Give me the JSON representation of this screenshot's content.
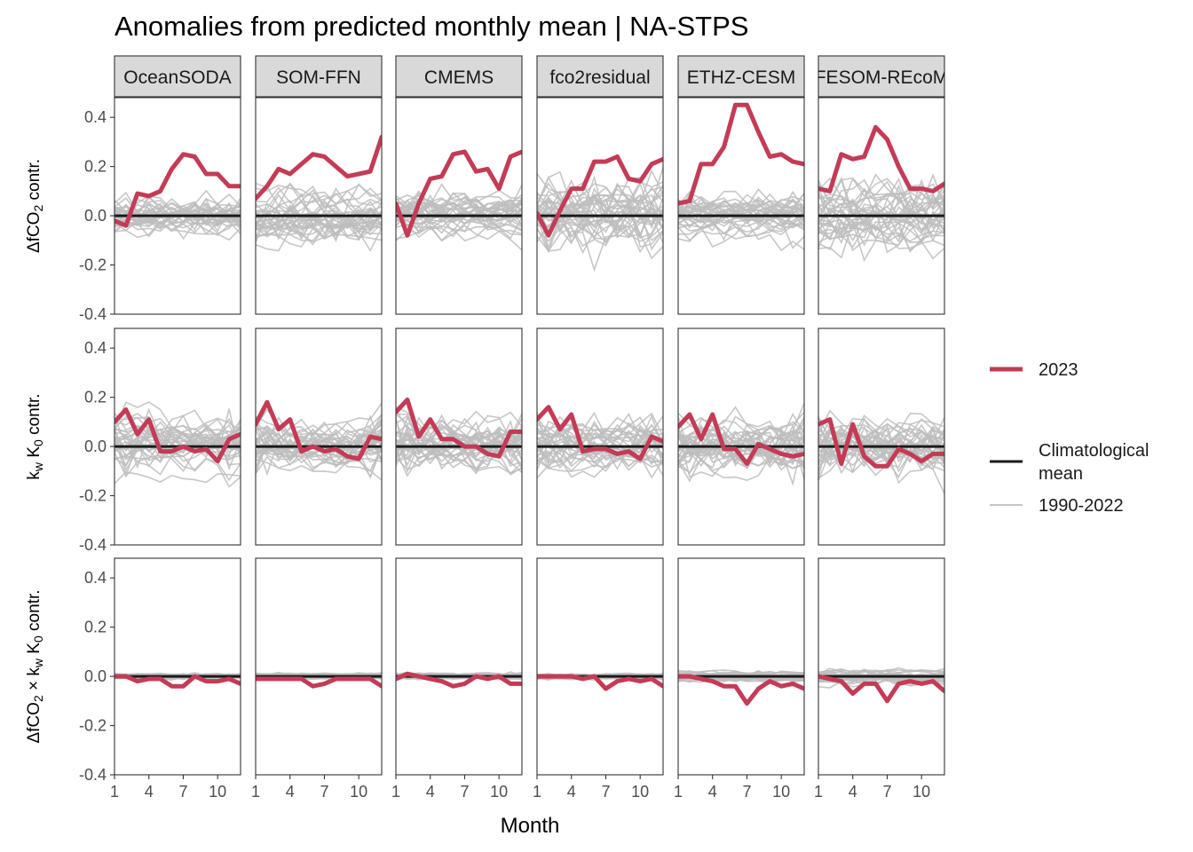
{
  "chart_data": {
    "type": "line",
    "title": "Anomalies from predicted monthly mean | NA-STPS",
    "xlabel": "Month",
    "x": [
      1,
      2,
      3,
      4,
      5,
      6,
      7,
      8,
      9,
      10,
      11,
      12
    ],
    "x_ticks": [
      1,
      4,
      7,
      10
    ],
    "xlim": [
      1,
      12
    ],
    "ylim": [
      -0.4,
      0.48
    ],
    "y_ticks": [
      -0.4,
      -0.2,
      0.0,
      0.2,
      0.4
    ],
    "y_tick_labels": [
      "-0.4",
      "-0.2",
      "0.0",
      "0.2",
      "0.4"
    ],
    "panels_columns": [
      "OceanSODA",
      "SOM-FFN",
      "CMEMS",
      "fco2residual",
      "ETHZ-CESM",
      "FESOM-REcoM"
    ],
    "panels_rows": [
      {
        "key": "dfco2",
        "label_parts": [
          "ΔfCO",
          "2",
          " contr."
        ]
      },
      {
        "key": "kw",
        "label_parts": [
          "k",
          "w",
          " K",
          "0",
          " contr."
        ]
      },
      {
        "key": "cross",
        "label_parts": [
          "ΔfCO",
          "2",
          " × k",
          "w",
          " K",
          "0",
          " contr."
        ]
      }
    ],
    "legend": [
      {
        "label": "2023",
        "color": "#c43b56",
        "style": "thick"
      },
      {
        "label": "Climatological mean",
        "label_lines": [
          "Climatological",
          "mean"
        ],
        "color": "#1a1a1a",
        "style": "medium"
      },
      {
        "label": "1990-2022",
        "color": "#bdbdbd",
        "style": "thin"
      }
    ],
    "legend_position": "right",
    "climatological_mean": 0.0,
    "background_years": {
      "count": 33,
      "range": "1990-2022",
      "spread": {
        "dfco2": [
          0.06,
          0.07,
          0.06,
          0.11,
          0.06,
          0.1
        ],
        "kw": [
          0.08,
          0.07,
          0.08,
          0.07,
          0.08,
          0.09
        ],
        "cross": [
          0.008,
          0.008,
          0.008,
          0.008,
          0.015,
          0.02
        ]
      }
    },
    "series_2023": {
      "dfco2": [
        [
          -0.02,
          -0.04,
          0.09,
          0.08,
          0.1,
          0.19,
          0.25,
          0.24,
          0.17,
          0.17,
          0.12,
          0.12
        ],
        [
          0.07,
          0.12,
          0.19,
          0.17,
          0.21,
          0.25,
          0.24,
          0.2,
          0.16,
          0.17,
          0.18,
          0.32
        ],
        [
          0.05,
          -0.08,
          0.05,
          0.15,
          0.16,
          0.25,
          0.26,
          0.18,
          0.19,
          0.11,
          0.24,
          0.26
        ],
        [
          0.01,
          -0.08,
          0.02,
          0.11,
          0.11,
          0.22,
          0.22,
          0.24,
          0.15,
          0.14,
          0.21,
          0.23
        ],
        [
          0.05,
          0.06,
          0.21,
          0.21,
          0.28,
          0.45,
          0.45,
          0.34,
          0.24,
          0.25,
          0.22,
          0.21
        ],
        [
          0.11,
          0.1,
          0.25,
          0.23,
          0.24,
          0.36,
          0.31,
          0.2,
          0.11,
          0.11,
          0.1,
          0.13
        ]
      ],
      "kw": [
        [
          0.1,
          0.15,
          0.05,
          0.11,
          -0.02,
          -0.02,
          0.0,
          -0.02,
          -0.01,
          -0.06,
          0.03,
          0.05
        ],
        [
          0.09,
          0.18,
          0.07,
          0.11,
          -0.02,
          0.0,
          -0.02,
          -0.01,
          -0.04,
          -0.05,
          0.04,
          0.03
        ],
        [
          0.14,
          0.19,
          0.04,
          0.11,
          0.03,
          0.03,
          0.0,
          0.0,
          -0.03,
          -0.04,
          0.06,
          0.06
        ],
        [
          0.11,
          0.16,
          0.07,
          0.13,
          -0.02,
          -0.01,
          -0.01,
          -0.03,
          -0.02,
          -0.05,
          0.04,
          0.02
        ],
        [
          0.08,
          0.13,
          0.03,
          0.13,
          -0.01,
          -0.01,
          -0.07,
          0.01,
          -0.01,
          -0.03,
          -0.04,
          -0.03
        ],
        [
          0.09,
          0.11,
          -0.07,
          0.09,
          -0.04,
          -0.08,
          -0.08,
          -0.01,
          -0.03,
          -0.06,
          -0.03,
          -0.03
        ]
      ],
      "cross": [
        [
          0.0,
          0.0,
          -0.02,
          -0.01,
          -0.01,
          -0.04,
          -0.04,
          0.0,
          -0.02,
          -0.02,
          -0.01,
          -0.03
        ],
        [
          -0.01,
          -0.01,
          -0.01,
          -0.01,
          -0.01,
          -0.04,
          -0.03,
          -0.01,
          -0.01,
          -0.01,
          -0.01,
          -0.04
        ],
        [
          -0.01,
          0.01,
          0.0,
          -0.01,
          -0.02,
          -0.04,
          -0.03,
          0.0,
          -0.01,
          0.0,
          -0.03,
          -0.03
        ],
        [
          0.0,
          0.0,
          0.0,
          0.0,
          -0.01,
          0.0,
          -0.05,
          -0.02,
          -0.01,
          -0.02,
          -0.01,
          -0.04
        ],
        [
          0.0,
          0.0,
          -0.01,
          -0.02,
          -0.04,
          -0.04,
          -0.11,
          -0.05,
          -0.02,
          -0.04,
          -0.03,
          -0.05
        ],
        [
          0.0,
          -0.01,
          -0.02,
          -0.07,
          -0.03,
          -0.03,
          -0.1,
          -0.03,
          -0.02,
          -0.03,
          -0.02,
          -0.06
        ]
      ]
    }
  }
}
